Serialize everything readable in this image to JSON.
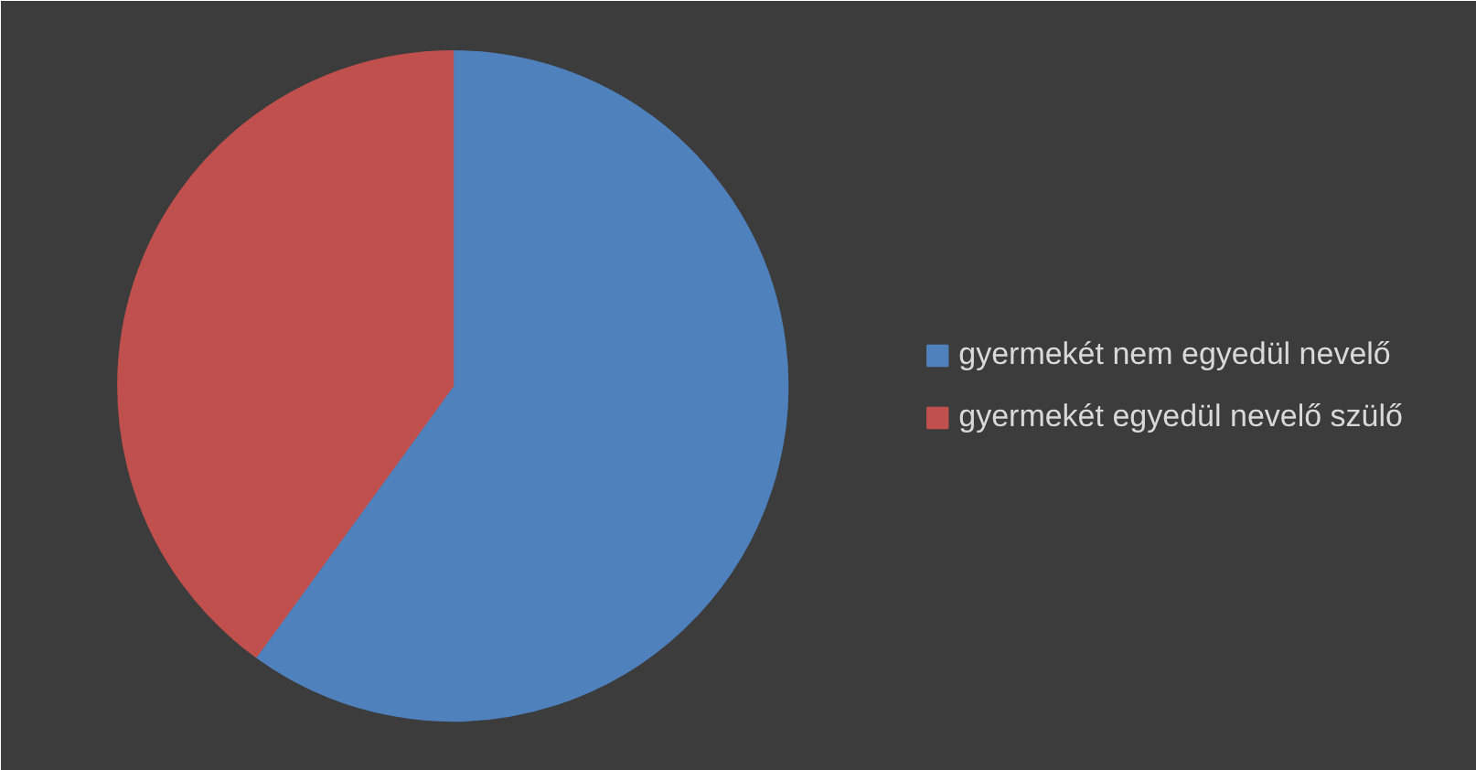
{
  "chart_data": {
    "type": "pie",
    "categories": [
      "gyermekét nem egyedül nevelő",
      "gyermekét egyedül nevelő szülő"
    ],
    "values": [
      60,
      40
    ],
    "colors": [
      "#4f81bd",
      "#c0504d"
    ],
    "legend": "right"
  }
}
